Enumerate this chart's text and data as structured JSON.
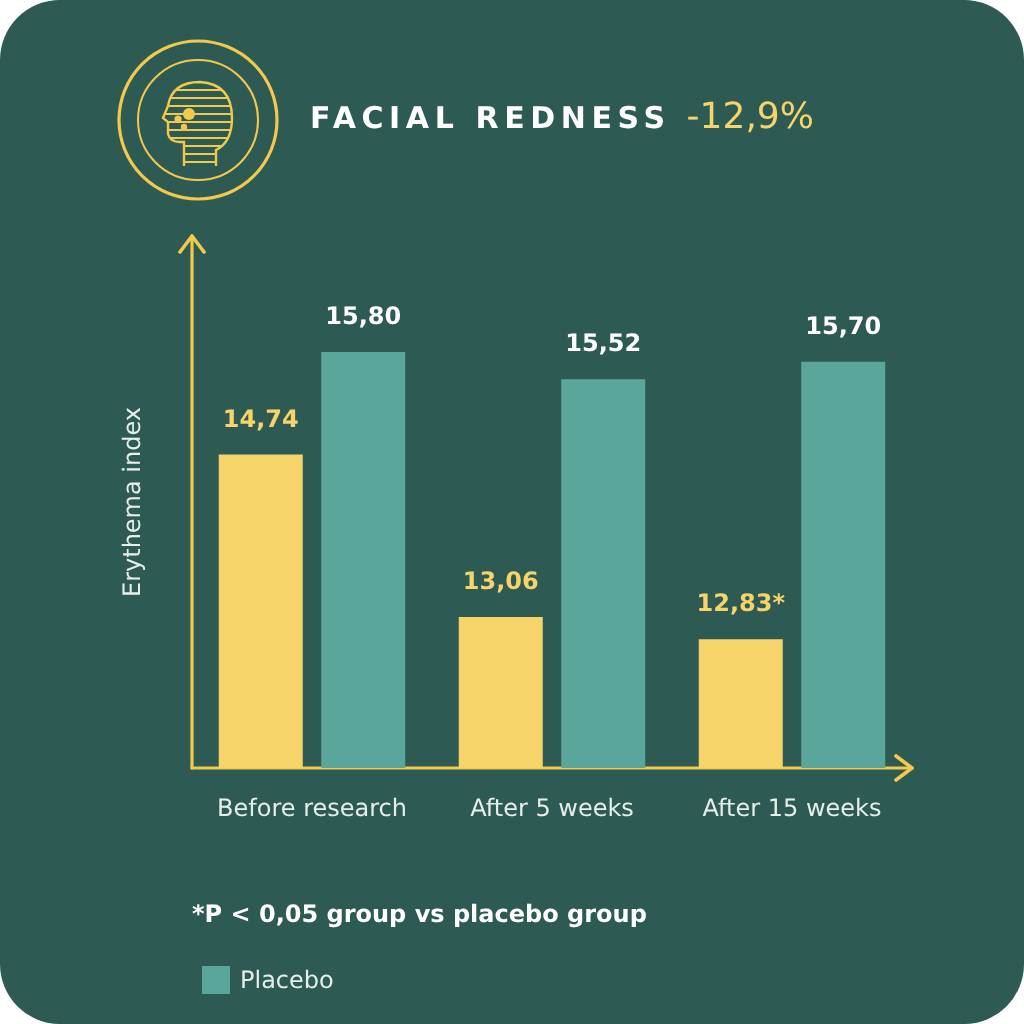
{
  "chart_data": {
    "type": "bar",
    "title": "FACIAL REDNESS",
    "subtitle": "-12,9%",
    "ylabel": "Erythema index",
    "categories": [
      "Before research",
      "After 5 weeks",
      "After 15 weeks"
    ],
    "series": [
      {
        "color": "#f7d46a",
        "values": [
          14.74,
          13.06,
          12.83
        ],
        "value_labels": [
          "14,74",
          "13,06",
          "12,83*"
        ]
      },
      {
        "name": "Placebo",
        "color": "#5ba69b",
        "values": [
          15.8,
          15.52,
          15.7
        ],
        "value_labels": [
          "15,80",
          "15,52",
          "15,70"
        ]
      }
    ],
    "ylim": [
      11.5,
      17
    ],
    "tick_labels": "x",
    "legend": "bottom left",
    "annotations": [
      "*P < 0,05 group vs placebo group"
    ]
  }
}
